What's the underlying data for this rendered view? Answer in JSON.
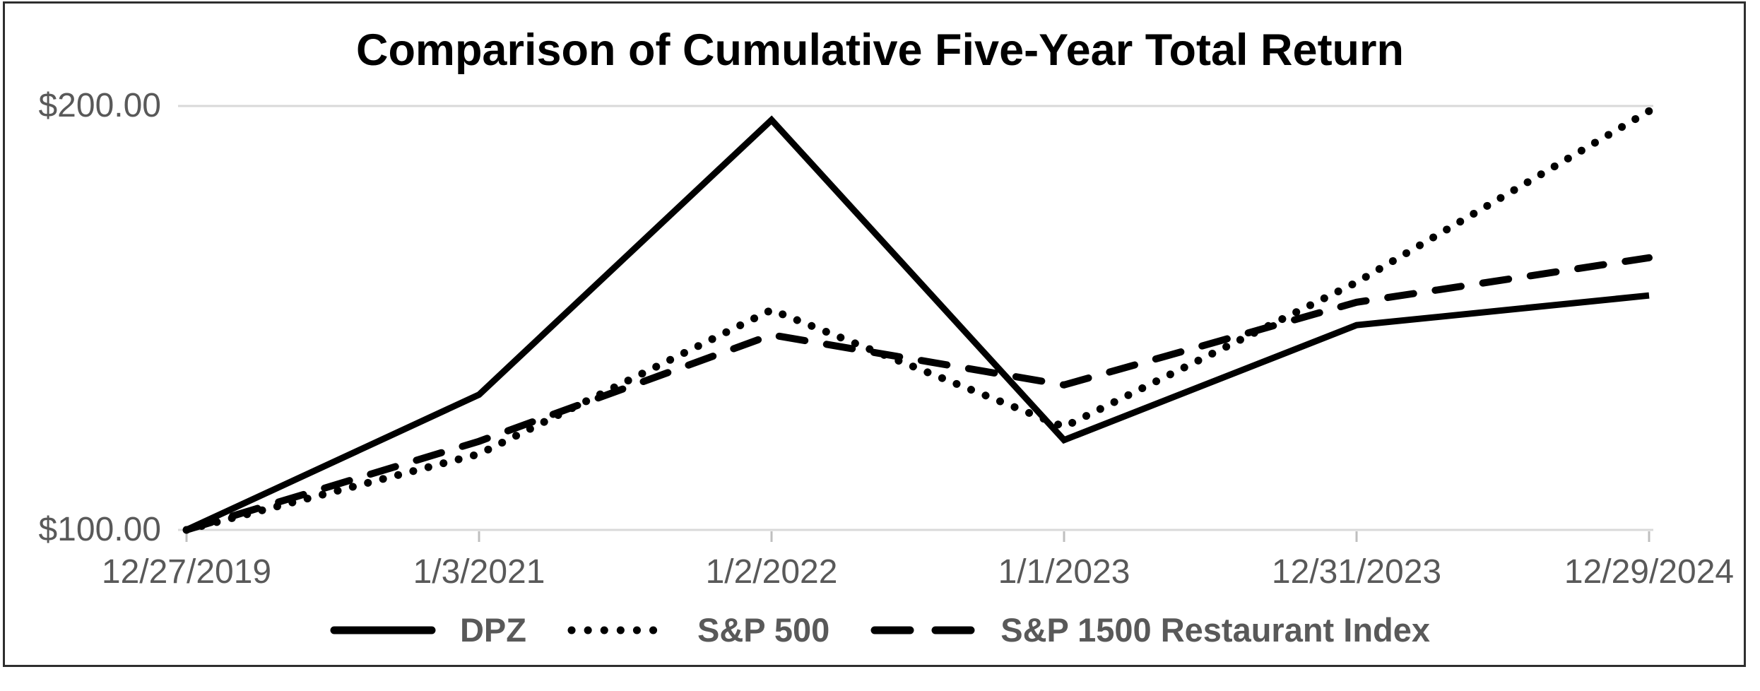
{
  "colors": {
    "line": "#000000",
    "axis_label": "#595959",
    "legend_label": "#595959",
    "gridline": "#d9d9d9",
    "tick": "#bfbfbf",
    "frame_border": "#2e2e2e",
    "title": "#000000",
    "background": "#ffffff"
  },
  "chart_data": {
    "type": "line",
    "title": "Comparison of Cumulative Five-Year Total Return",
    "categories": [
      "12/27/2019",
      "1/3/2021",
      "1/2/2022",
      "1/1/2023",
      "12/31/2023",
      "12/29/2024"
    ],
    "series": [
      {
        "name": "DPZ",
        "style": "solid",
        "values": [
          100.0,
          131.9,
          196.7,
          121.2,
          148.3,
          155.3
        ]
      },
      {
        "name": "S&P 500",
        "style": "dotted",
        "values": [
          100.0,
          117.9,
          151.9,
          124.3,
          158.4,
          198.8
        ]
      },
      {
        "name": "S&P 1500 Restaurant Index",
        "style": "dashed",
        "values": [
          100.0,
          120.9,
          146.0,
          134.2,
          153.7,
          164.2
        ]
      }
    ],
    "y_axis": {
      "range": [
        100,
        200
      ],
      "ticks": [
        {
          "label": "$100.00",
          "value": 100
        },
        {
          "label": "$200.00",
          "value": 200
        }
      ]
    },
    "x_axis_label_rotation": 0,
    "grid": "horizontal-only",
    "legend_position": "bottom"
  }
}
